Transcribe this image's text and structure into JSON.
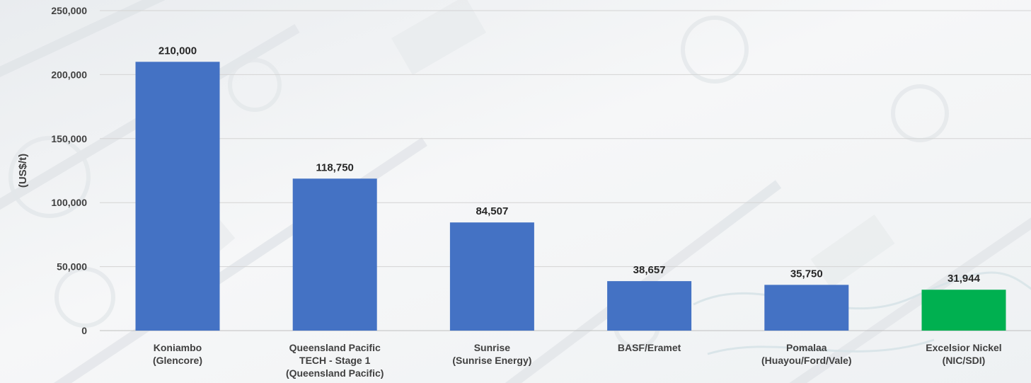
{
  "chart_data": {
    "type": "bar",
    "title": "",
    "xlabel": "",
    "ylabel": "(US$/t)",
    "ylim": [
      0,
      250000
    ],
    "yticks": [
      0,
      50000,
      100000,
      150000,
      200000,
      250000
    ],
    "ytick_labels": [
      "0",
      "50,000",
      "100,000",
      "150,000",
      "200,000",
      "250,000"
    ],
    "grid": true,
    "categories": [
      [
        "Koniambo",
        "(Glencore)"
      ],
      [
        "Queensland Pacific",
        "TECH - Stage 1",
        "(Queensland Pacific)"
      ],
      [
        "Sunrise",
        "(Sunrise Energy)"
      ],
      [
        "BASF/Eramet"
      ],
      [
        "Pomalaa",
        "(Huayou/Ford/Vale)"
      ],
      [
        "Excelsior Nickel",
        "(NIC/SDI)"
      ]
    ],
    "values": [
      210000,
      118750,
      84507,
      38657,
      35750,
      31944
    ],
    "value_labels": [
      "210,000",
      "118,750",
      "84,507",
      "38,657",
      "35,750",
      "31,944"
    ],
    "bar_colors": [
      "#4472c4",
      "#4472c4",
      "#4472c4",
      "#4472c4",
      "#4472c4",
      "#00b050"
    ]
  }
}
